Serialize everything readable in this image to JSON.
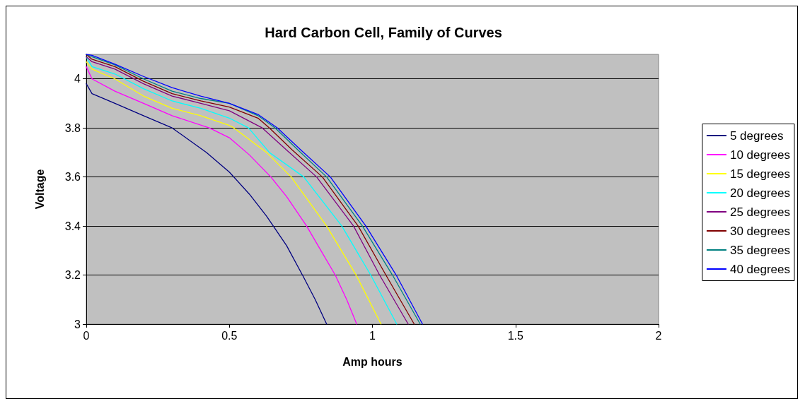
{
  "chart_data": {
    "type": "line",
    "title": "Hard Carbon Cell, Family of Curves",
    "xlabel": "Amp hours",
    "ylabel": "Voltage",
    "xlim": [
      0,
      2
    ],
    "xticks": [
      0,
      0.5,
      1,
      1.5,
      2
    ],
    "ylim": [
      3,
      4.1
    ],
    "yticks": [
      3,
      3.2,
      3.4,
      3.6,
      3.8,
      4
    ],
    "grid": "y",
    "legend": "right",
    "marker": "none",
    "line_style": "solid",
    "series": [
      {
        "name": "5 degrees",
        "color": "#000080",
        "x": [
          0,
          0.02,
          0.1,
          0.2,
          0.3,
          0.42,
          0.5,
          0.57,
          0.63,
          0.7,
          0.76,
          0.8,
          0.84
        ],
        "values": [
          3.98,
          3.94,
          3.9,
          3.85,
          3.8,
          3.7,
          3.62,
          3.53,
          3.44,
          3.32,
          3.19,
          3.1,
          3.0
        ]
      },
      {
        "name": "10 degrees",
        "color": "#ff00ff",
        "x": [
          0,
          0.02,
          0.1,
          0.2,
          0.3,
          0.43,
          0.5,
          0.57,
          0.645,
          0.7,
          0.77,
          0.82,
          0.87,
          0.91,
          0.945
        ],
        "values": [
          4.05,
          4.0,
          3.95,
          3.9,
          3.85,
          3.8,
          3.76,
          3.69,
          3.6,
          3.52,
          3.4,
          3.3,
          3.2,
          3.1,
          3.0
        ]
      },
      {
        "name": "15 degrees",
        "color": "#ffff00",
        "x": [
          0,
          0.02,
          0.1,
          0.2,
          0.3,
          0.4,
          0.5,
          0.516,
          0.63,
          0.716,
          0.84,
          0.943,
          1.03
        ],
        "values": [
          4.07,
          4.04,
          4.0,
          3.93,
          3.88,
          3.85,
          3.81,
          3.8,
          3.7,
          3.6,
          3.4,
          3.2,
          3.0
        ]
      },
      {
        "name": "20 degrees",
        "color": "#00ffff",
        "x": [
          0,
          0.02,
          0.1,
          0.2,
          0.3,
          0.4,
          0.5,
          0.567,
          0.64,
          0.76,
          0.893,
          0.994,
          1.085
        ],
        "values": [
          4.09,
          4.05,
          4.02,
          3.96,
          3.91,
          3.88,
          3.84,
          3.8,
          3.7,
          3.6,
          3.4,
          3.2,
          3.0
        ]
      },
      {
        "name": "25 degrees",
        "color": "#800080",
        "x": [
          0,
          0.02,
          0.1,
          0.2,
          0.3,
          0.4,
          0.5,
          0.615,
          0.7,
          0.805,
          0.934,
          1.025,
          1.125
        ],
        "values": [
          4.09,
          4.07,
          4.04,
          3.98,
          3.93,
          3.9,
          3.87,
          3.8,
          3.71,
          3.6,
          3.4,
          3.2,
          3.0
        ]
      },
      {
        "name": "30 degrees",
        "color": "#800000",
        "x": [
          0,
          0.02,
          0.1,
          0.2,
          0.3,
          0.4,
          0.5,
          0.6,
          0.64,
          0.72,
          0.825,
          0.95,
          1.047,
          1.146
        ],
        "values": [
          4.1,
          4.08,
          4.05,
          3.99,
          3.94,
          3.91,
          3.885,
          3.84,
          3.8,
          3.71,
          3.6,
          3.4,
          3.2,
          3.0
        ]
      },
      {
        "name": "35 degrees",
        "color": "#008080",
        "x": [
          0,
          0.02,
          0.1,
          0.2,
          0.3,
          0.4,
          0.5,
          0.6,
          0.66,
          0.74,
          0.84,
          0.965,
          1.07,
          1.167
        ],
        "values": [
          4.1,
          4.09,
          4.057,
          4.0,
          3.95,
          3.92,
          3.9,
          3.85,
          3.8,
          3.71,
          3.6,
          3.4,
          3.2,
          3.0
        ]
      },
      {
        "name": "40 degrees",
        "color": "#0000ff",
        "x": [
          0,
          0.02,
          0.1,
          0.2,
          0.3,
          0.4,
          0.5,
          0.6,
          0.668,
          0.75,
          0.853,
          0.977,
          1.083,
          1.175
        ],
        "values": [
          4.1,
          4.096,
          4.06,
          4.01,
          3.964,
          3.93,
          3.9,
          3.855,
          3.8,
          3.71,
          3.6,
          3.4,
          3.2,
          3.0
        ]
      }
    ]
  }
}
